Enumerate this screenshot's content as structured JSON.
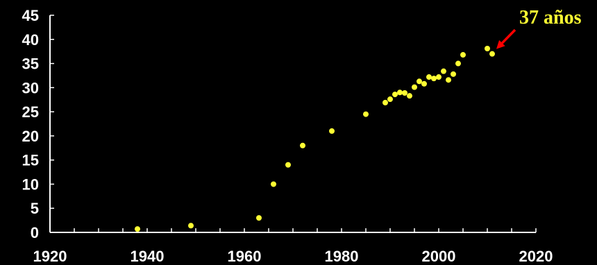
{
  "chart_data": {
    "type": "scatter",
    "title": "",
    "xlabel": "",
    "ylabel": "",
    "xlim": [
      1920,
      2020
    ],
    "ylim": [
      0,
      45
    ],
    "x_ticks": [
      1920,
      1940,
      1960,
      1980,
      2000,
      2020
    ],
    "y_ticks": [
      0,
      5,
      10,
      15,
      20,
      25,
      30,
      35,
      40,
      45
    ],
    "grid": false,
    "legend": "none",
    "colors": {
      "background": "#000000",
      "axis": "#ffffff",
      "points": "#ffff33",
      "arrow": "#ff0000",
      "annotation": "#ffff33"
    },
    "series": [
      {
        "points": [
          [
            1938,
            0.7
          ],
          [
            1949,
            1.4
          ],
          [
            1963,
            3.0
          ],
          [
            1966,
            10.0
          ],
          [
            1969,
            14.0
          ],
          [
            1972,
            18.0
          ],
          [
            1978,
            21.0
          ],
          [
            1985,
            24.5
          ],
          [
            1989,
            26.9
          ],
          [
            1990,
            27.6
          ],
          [
            1991,
            28.6
          ],
          [
            1992,
            29.0
          ],
          [
            1993,
            28.9
          ],
          [
            1994,
            28.3
          ],
          [
            1995,
            30.1
          ],
          [
            1996,
            31.3
          ],
          [
            1997,
            30.8
          ],
          [
            1998,
            32.2
          ],
          [
            1999,
            31.9
          ],
          [
            2000,
            32.2
          ],
          [
            2001,
            33.4
          ],
          [
            2002,
            31.6
          ],
          [
            2003,
            32.8
          ],
          [
            2004,
            35.0
          ],
          [
            2005,
            36.8
          ],
          [
            2010,
            38.1
          ],
          [
            2011,
            37.0
          ]
        ]
      }
    ],
    "annotation": {
      "text": "37 años",
      "target": [
        2011,
        37.0
      ]
    }
  }
}
